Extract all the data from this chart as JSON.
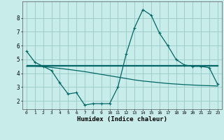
{
  "x": [
    0,
    1,
    2,
    3,
    4,
    5,
    6,
    7,
    8,
    9,
    10,
    11,
    12,
    13,
    14,
    15,
    16,
    17,
    18,
    19,
    20,
    21,
    22,
    23
  ],
  "line1": [
    5.6,
    4.8,
    4.5,
    4.2,
    3.3,
    2.5,
    2.6,
    1.7,
    1.8,
    1.8,
    1.8,
    3.0,
    5.4,
    7.3,
    8.6,
    8.2,
    6.9,
    6.0,
    5.0,
    4.6,
    4.5,
    4.5,
    4.4,
    3.2
  ],
  "line2": [
    4.6,
    4.6,
    4.6,
    4.6,
    4.6,
    4.6,
    4.6,
    4.6,
    4.6,
    4.6,
    4.6,
    4.6,
    4.6,
    4.6,
    4.6,
    4.6,
    4.6,
    4.6,
    4.6,
    4.6,
    4.6,
    4.6,
    4.6,
    4.6
  ],
  "line3": [
    4.5,
    4.5,
    4.48,
    4.42,
    4.35,
    4.28,
    4.2,
    4.12,
    4.02,
    3.92,
    3.82,
    3.72,
    3.62,
    3.52,
    3.44,
    3.38,
    3.32,
    3.26,
    3.22,
    3.18,
    3.15,
    3.12,
    3.1,
    3.08
  ],
  "line4": [
    4.55,
    4.55,
    4.55,
    4.55,
    4.55,
    4.55,
    4.55,
    4.55,
    4.55,
    4.55,
    4.55,
    4.55,
    4.55,
    4.55,
    4.55,
    4.55,
    4.55,
    4.55,
    4.55,
    4.55,
    4.55,
    4.55,
    4.55,
    4.55
  ],
  "line_color": "#006666",
  "bg_color": "#c8ecea",
  "grid_color": "#9ecfcc",
  "xlabel": "Humidex (Indice chaleur)",
  "xlim": [
    -0.5,
    23.5
  ],
  "ylim": [
    1.4,
    9.2
  ],
  "yticks": [
    2,
    3,
    4,
    5,
    6,
    7,
    8
  ],
  "xtick_labels": [
    "0",
    "1",
    "2",
    "3",
    "4",
    "5",
    "6",
    "7",
    "8",
    "9",
    "10",
    "11",
    "12",
    "13",
    "14",
    "15",
    "16",
    "17",
    "18",
    "19",
    "20",
    "21",
    "22",
    "23"
  ]
}
